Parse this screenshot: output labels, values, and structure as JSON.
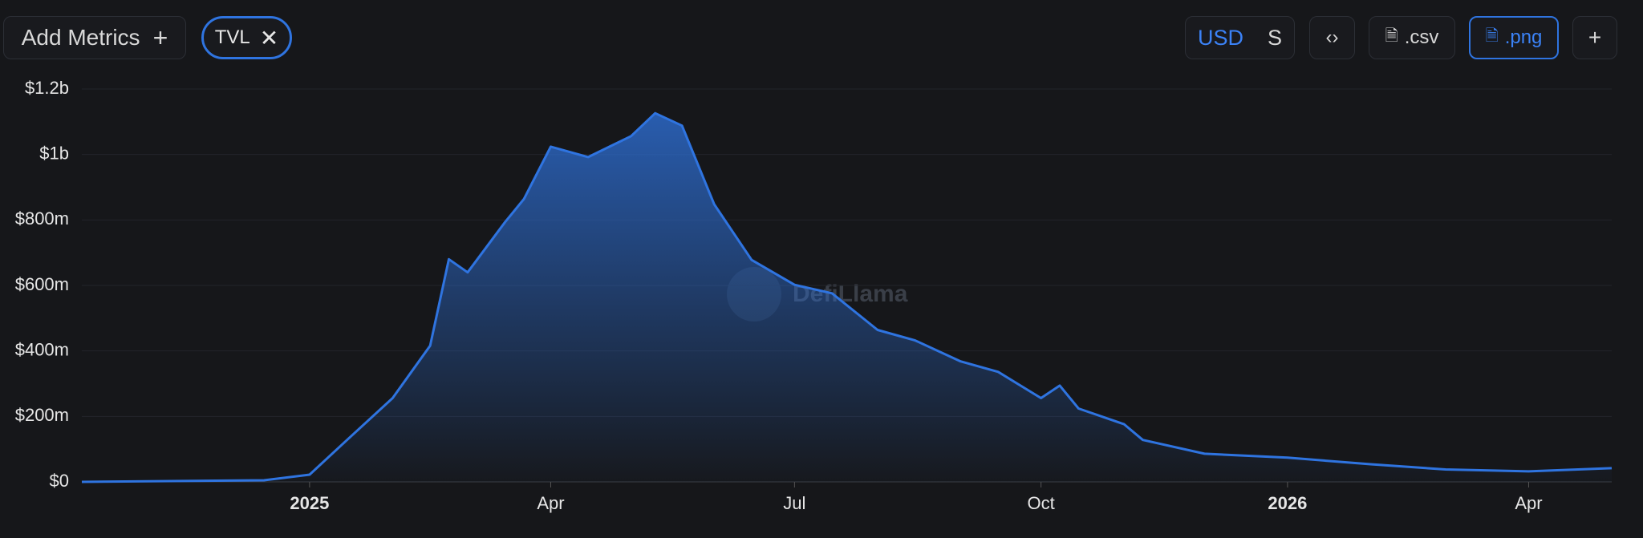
{
  "toolbar": {
    "add_metrics": "Add Metrics",
    "metric_chip": "TVL",
    "currency": "USD",
    "currency_alt": "S",
    "csv": ".csv",
    "png": ".png"
  },
  "watermark": "DefiLlama",
  "chart_data": {
    "type": "area",
    "x": [
      "2024-10-08",
      "2024-12-15",
      "2025-01-01",
      "2025-01-15",
      "2025-02-01",
      "2025-02-15",
      "2025-02-22",
      "2025-03-01",
      "2025-03-15",
      "2025-03-22",
      "2025-04-01",
      "2025-04-15",
      "2025-05-01",
      "2025-05-10",
      "2025-05-20",
      "2025-06-01",
      "2025-06-15",
      "2025-07-01",
      "2025-07-15",
      "2025-08-01",
      "2025-08-15",
      "2025-09-01",
      "2025-09-15",
      "2025-10-01",
      "2025-10-08",
      "2025-10-15",
      "2025-11-01",
      "2025-11-08",
      "2025-12-01",
      "2026-01-01",
      "2026-02-01",
      "2026-03-01",
      "2026-04-01",
      "2026-05-02"
    ],
    "series": [
      {
        "name": "TVL",
        "color": "#2f74e0",
        "values": [
          0,
          5000000,
          22000000,
          128000000,
          256000000,
          416000000,
          680000000,
          640000000,
          794000000,
          864000000,
          1024000000,
          992000000,
          1056000000,
          1126000000,
          1088000000,
          848000000,
          678000000,
          602000000,
          576000000,
          464000000,
          432000000,
          368000000,
          336000000,
          256000000,
          294000000,
          224000000,
          176000000,
          128000000,
          86000000,
          74000000,
          54000000,
          38000000,
          32000000,
          42000000
        ]
      }
    ],
    "xlim": [
      "2024-10-08",
      "2026-05-02"
    ],
    "xticks": [
      {
        "value": "2025-01-01",
        "label": "2025"
      },
      {
        "value": "2025-04-01",
        "label": "Apr"
      },
      {
        "value": "2025-07-01",
        "label": "Jul"
      },
      {
        "value": "2025-10-01",
        "label": "Oct"
      },
      {
        "value": "2026-01-01",
        "label": "2026"
      },
      {
        "value": "2026-04-01",
        "label": "Apr"
      }
    ],
    "ylim": [
      0,
      1200000000
    ],
    "yticks": [
      {
        "value": 0,
        "label": "$0"
      },
      {
        "value": 200000000,
        "label": "$200m"
      },
      {
        "value": 400000000,
        "label": "$400m"
      },
      {
        "value": 600000000,
        "label": "$600m"
      },
      {
        "value": 800000000,
        "label": "$800m"
      },
      {
        "value": 1000000000,
        "label": "$1b"
      },
      {
        "value": 1200000000,
        "label": "$1.2b"
      }
    ],
    "grid": true
  }
}
